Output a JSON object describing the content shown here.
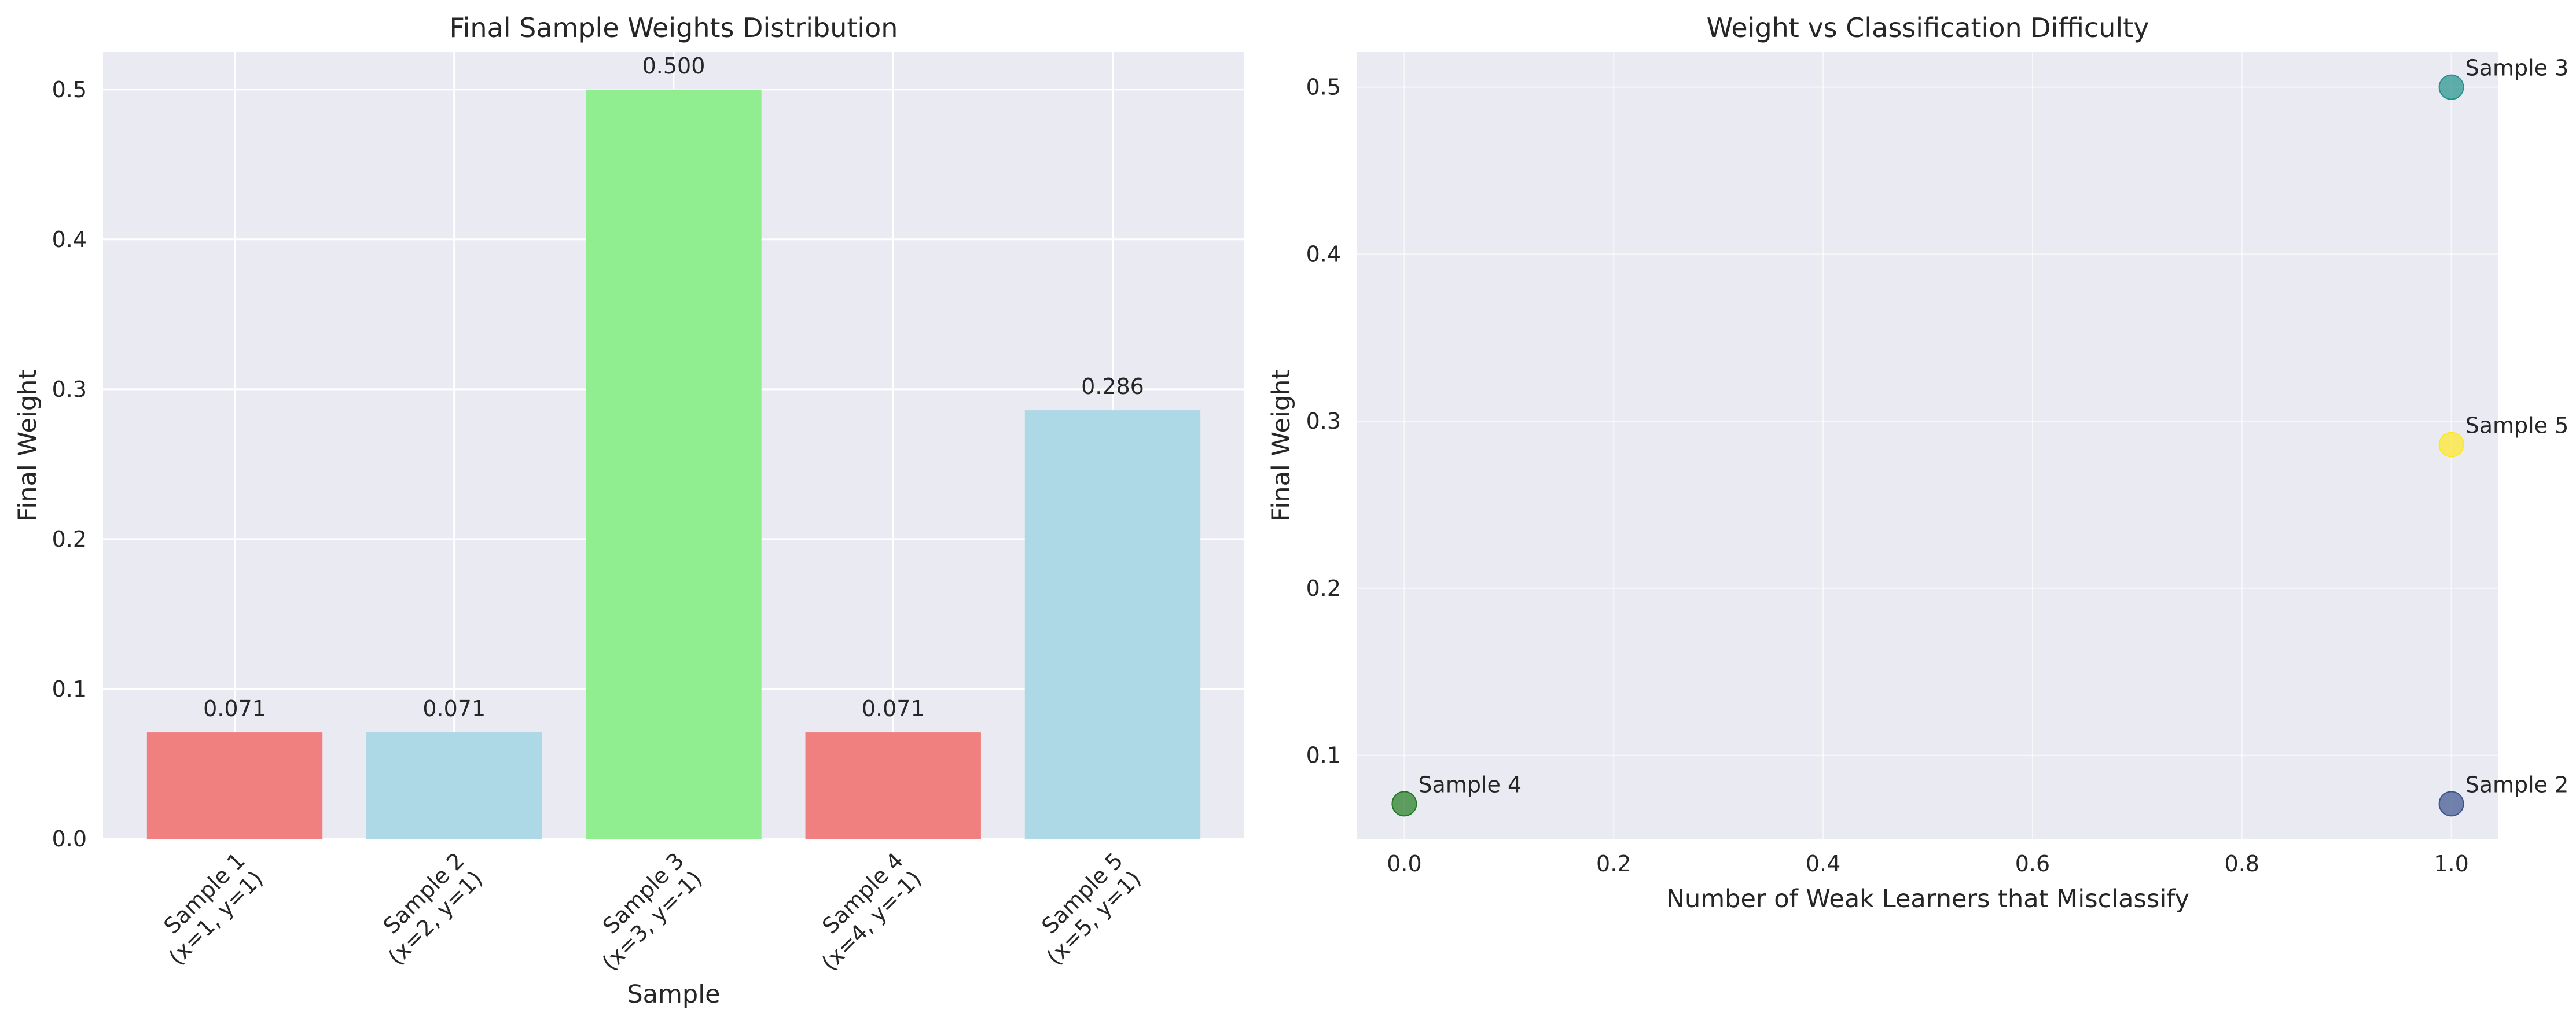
{
  "chart_data": [
    {
      "type": "bar",
      "title": "Final Sample Weights Distribution",
      "xlabel": "Sample",
      "ylabel": "Final Weight",
      "categories": [
        [
          "Sample 1",
          "(x=1, y=1)"
        ],
        [
          "Sample 2",
          "(x=2, y=1)"
        ],
        [
          "Sample 3",
          "(x=3, y=-1)"
        ],
        [
          "Sample 4",
          "(x=4, y=-1)"
        ],
        [
          "Sample 5",
          "(x=5, y=1)"
        ]
      ],
      "values": [
        0.071,
        0.071,
        0.5,
        0.071,
        0.286
      ],
      "value_labels": [
        "0.071",
        "0.071",
        "0.500",
        "0.071",
        "0.286"
      ],
      "colors": [
        "#f08080",
        "#add8e6",
        "#90ee90",
        "#f08080",
        "#add8e6"
      ],
      "ylim": [
        0,
        0.525
      ],
      "yticks": [
        0.0,
        0.1,
        0.2,
        0.3,
        0.4,
        0.5
      ],
      "ytick_labels": [
        "0.0",
        "0.1",
        "0.2",
        "0.3",
        "0.4",
        "0.5"
      ],
      "grid": true
    },
    {
      "type": "scatter",
      "title": "Weight vs Classification Difficulty",
      "xlabel": "Number of Weak Learners that Misclassify",
      "ylabel": "Final Weight",
      "points": [
        {
          "label": "Sample 2",
          "x": 1.0,
          "y": 0.071,
          "color": "#3b528b"
        },
        {
          "label": "Sample 3",
          "x": 1.0,
          "y": 0.5,
          "color": "#21918c"
        },
        {
          "label": "Sample 4",
          "x": 0.0,
          "y": 0.071,
          "color": "#1f7a1f"
        },
        {
          "label": "Sample 5",
          "x": 1.0,
          "y": 0.286,
          "color": "#fde725"
        }
      ],
      "xlim": [
        -0.045,
        1.045
      ],
      "ylim": [
        0.05,
        0.521
      ],
      "xticks": [
        0.0,
        0.2,
        0.4,
        0.6,
        0.8,
        1.0
      ],
      "xtick_labels": [
        "0.0",
        "0.2",
        "0.4",
        "0.6",
        "0.8",
        "1.0"
      ],
      "yticks": [
        0.1,
        0.2,
        0.3,
        0.4,
        0.5
      ],
      "ytick_labels": [
        "0.1",
        "0.2",
        "0.3",
        "0.4",
        "0.5"
      ],
      "grid": true
    }
  ]
}
